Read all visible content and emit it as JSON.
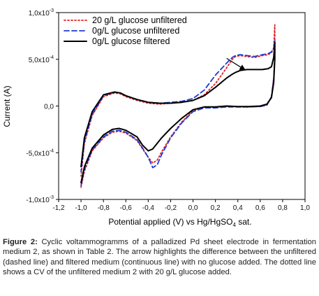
{
  "chart_data": {
    "type": "line",
    "title": "",
    "xlabel_prefix": "Potential applied (V) vs Hg/HgSO",
    "xlabel_sub": "4",
    "xlabel_suffix": " sat.",
    "ylabel": "Current (A)",
    "xlim": [
      -1.2,
      1.0
    ],
    "ylim": [
      -0.001,
      0.001
    ],
    "x_ticks": [
      {
        "value": -1.2,
        "label": "-1,2"
      },
      {
        "value": -1.0,
        "label": "-1,0"
      },
      {
        "value": -0.8,
        "label": "-0,8"
      },
      {
        "value": -0.6,
        "label": "-0,6"
      },
      {
        "value": -0.4,
        "label": "-0,4"
      },
      {
        "value": -0.2,
        "label": "-0,2"
      },
      {
        "value": 0.0,
        "label": "0,0"
      },
      {
        "value": 0.2,
        "label": "0,2"
      },
      {
        "value": 0.4,
        "label": "0,4"
      },
      {
        "value": 0.6,
        "label": "0,6"
      },
      {
        "value": 0.8,
        "label": "0,8"
      },
      {
        "value": 1.0,
        "label": "1,0"
      }
    ],
    "y_ticks": [
      {
        "value": 0.001,
        "mantissa": "1,0x10",
        "exponent": "-3"
      },
      {
        "value": 0.0005,
        "mantissa": "5,0x10",
        "exponent": "-4"
      },
      {
        "value": 0.0,
        "mantissa": "0,0",
        "exponent": ""
      },
      {
        "value": -0.0005,
        "mantissa": "-5,0x10",
        "exponent": "-4"
      },
      {
        "value": -0.001,
        "mantissa": "-1,0x10",
        "exponent": "-3"
      }
    ],
    "grid": false,
    "legend_position": "top-left",
    "series": [
      {
        "name": "20 g/L glucose unfiltered",
        "color": "#e02020",
        "style": "dotted",
        "x": [
          -1.0,
          -0.97,
          -0.9,
          -0.8,
          -0.72,
          -0.66,
          -0.6,
          -0.5,
          -0.45,
          -0.4,
          -0.36,
          -0.32,
          -0.28,
          -0.2,
          -0.1,
          0.0,
          0.1,
          0.2,
          0.3,
          0.4,
          0.5,
          0.6,
          0.66,
          0.7,
          0.72,
          0.73,
          0.73,
          0.72,
          0.7,
          0.67,
          0.62,
          0.55,
          0.48,
          0.42,
          0.38,
          0.35,
          0.3,
          0.2,
          0.1,
          0.0,
          -0.1,
          -0.2,
          -0.3,
          -0.4,
          -0.5,
          -0.6,
          -0.65,
          -0.7,
          -0.8,
          -0.9,
          -0.97,
          -1.0
        ],
        "y": [
          -0.00087,
          -0.0007,
          -0.00048,
          -0.00034,
          -0.00028,
          -0.00027,
          -0.00029,
          -0.00037,
          -0.00046,
          -0.00055,
          -0.00061,
          -0.00058,
          -0.00049,
          -0.00033,
          -0.00017,
          -5e-05,
          -1e-05,
          -1e-05,
          -5e-06,
          -1e-05,
          -1e-05,
          -5e-06,
          1e-05,
          0.0001,
          0.0003,
          0.00055,
          0.00087,
          0.00062,
          0.00057,
          0.00055,
          0.00054,
          0.00052,
          0.00053,
          0.00054,
          0.00053,
          0.0005,
          0.00041,
          0.00024,
          0.00012,
          6e-05,
          4e-05,
          3e-05,
          2e-05,
          3e-05,
          6e-05,
          0.0001,
          0.00013,
          0.00014,
          0.0001,
          -0.0001,
          -0.0004,
          -0.00075
        ]
      },
      {
        "name": "0g/L glucose unfiltered",
        "color": "#1f3ad4",
        "style": "dashed",
        "x": [
          -1.0,
          -0.97,
          -0.9,
          -0.8,
          -0.72,
          -0.66,
          -0.6,
          -0.5,
          -0.45,
          -0.4,
          -0.36,
          -0.32,
          -0.28,
          -0.2,
          -0.1,
          0.0,
          0.1,
          0.2,
          0.3,
          0.4,
          0.5,
          0.6,
          0.66,
          0.7,
          0.72,
          0.73,
          0.73,
          0.72,
          0.7,
          0.67,
          0.62,
          0.55,
          0.48,
          0.42,
          0.38,
          0.35,
          0.3,
          0.2,
          0.1,
          0.0,
          -0.1,
          -0.2,
          -0.3,
          -0.4,
          -0.5,
          -0.6,
          -0.65,
          -0.7,
          -0.8,
          -0.9,
          -0.97,
          -1.0
        ],
        "y": [
          -0.00085,
          -0.00068,
          -0.00047,
          -0.00033,
          -0.00027,
          -0.00026,
          -0.00028,
          -0.00036,
          -0.00045,
          -0.00055,
          -0.00066,
          -0.00063,
          -0.00052,
          -0.00034,
          -0.00018,
          -6e-05,
          -2e-05,
          -2e-05,
          -1e-05,
          -1e-05,
          -1e-05,
          -5e-06,
          1e-05,
          0.0001,
          0.00029,
          0.00054,
          0.0007,
          0.00062,
          0.00058,
          0.00056,
          0.00055,
          0.00053,
          0.00054,
          0.00055,
          0.00054,
          0.00052,
          0.00046,
          0.00033,
          0.00017,
          8e-05,
          5e-05,
          4e-05,
          3e-05,
          4e-05,
          7e-05,
          0.00011,
          0.00014,
          0.00015,
          0.00011,
          -9e-05,
          -0.00038,
          -0.0007
        ]
      },
      {
        "name": "0g/L glucose filtered",
        "color": "#000000",
        "style": "solid",
        "x": [
          -1.0,
          -0.97,
          -0.9,
          -0.8,
          -0.72,
          -0.66,
          -0.6,
          -0.5,
          -0.45,
          -0.4,
          -0.36,
          -0.32,
          -0.28,
          -0.2,
          -0.1,
          0.0,
          0.1,
          0.2,
          0.3,
          0.4,
          0.5,
          0.6,
          0.66,
          0.7,
          0.72,
          0.73,
          0.73,
          0.72,
          0.7,
          0.67,
          0.62,
          0.55,
          0.48,
          0.42,
          0.38,
          0.35,
          0.3,
          0.2,
          0.1,
          0.0,
          -0.1,
          -0.2,
          -0.3,
          -0.4,
          -0.5,
          -0.6,
          -0.65,
          -0.7,
          -0.8,
          -0.9,
          -0.97,
          -1.0
        ],
        "y": [
          -0.00082,
          -0.00065,
          -0.00045,
          -0.00031,
          -0.00025,
          -0.00024,
          -0.00026,
          -0.00033,
          -0.00042,
          -0.00048,
          -0.00046,
          -0.0004,
          -0.00034,
          -0.00024,
          -0.00013,
          -4e-05,
          -1e-05,
          -1e-05,
          0.0,
          -5e-06,
          -5e-06,
          0.0,
          2e-05,
          9e-05,
          0.00025,
          0.0005,
          0.00068,
          0.00052,
          0.00042,
          0.0004,
          0.00039,
          0.00039,
          0.00039,
          0.00038,
          0.00036,
          0.00034,
          0.0003,
          0.0002,
          0.00011,
          6e-05,
          4e-05,
          3e-05,
          3e-05,
          4e-05,
          7e-05,
          0.00011,
          0.00014,
          0.00015,
          0.00012,
          -6e-05,
          -0.00034,
          -0.00065
        ]
      }
    ],
    "annotations": [
      {
        "type": "arrow",
        "from": [
          0.3,
          0.00051
        ],
        "to": [
          0.46,
          0.00039
        ]
      }
    ]
  },
  "caption": {
    "label": "Figure 2:",
    "text": " Cyclic voltammogramms of a palladized Pd sheet electrode in fermentation medium 2, as shown in Table 2. The arrow highlights the difference between the unfiltered (dashed line) and filtered medium (continuous line) with no glucose added. The dotted line shows a CV of the unfiltered medium 2 with 20 g/L glucose added."
  }
}
